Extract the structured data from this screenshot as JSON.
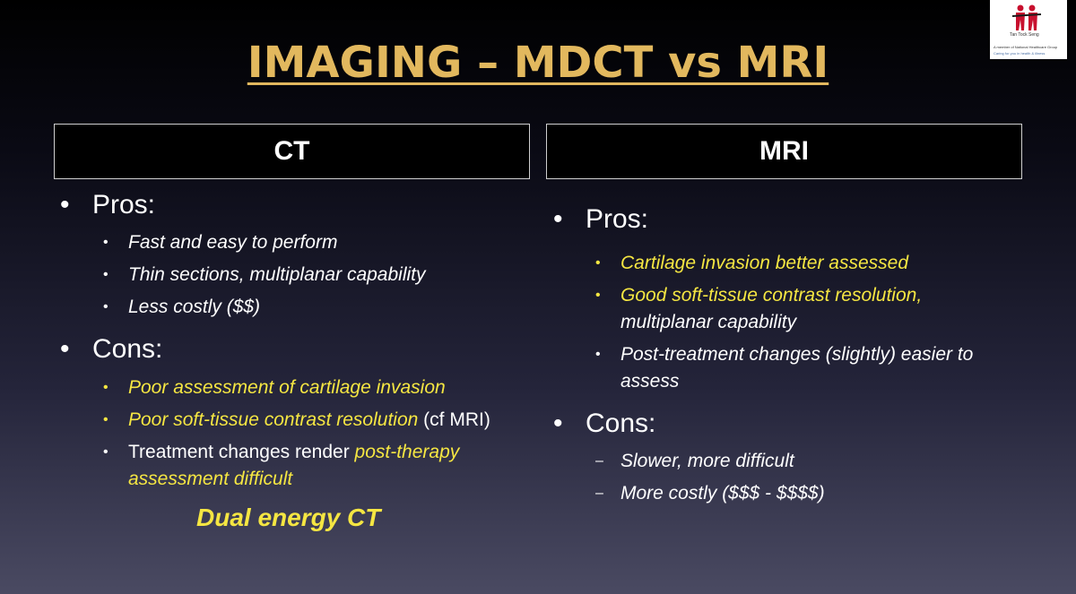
{
  "title": "IMAGING – MDCT vs MRI",
  "logo": {
    "line1": "Tan Tock Seng",
    "line2": "A member of National Healthcare Group",
    "line3": "Caring for you in health & illness"
  },
  "ct": {
    "header": "CT",
    "pros_label": "Pros:",
    "pros": [
      "Fast and easy to perform",
      "Thin sections, multiplanar capability",
      "Less costly ($$)"
    ],
    "cons_label": "Cons:",
    "cons1": "Poor assessment of cartilage invasion",
    "cons2_a": "Poor soft-tissue contrast resolution",
    "cons2_b": " (cf MRI)",
    "cons3_a": "Treatment changes render ",
    "cons3_b": "post-therapy",
    "cons3_c": "assessment difficult",
    "note": "Dual energy CT"
  },
  "mri": {
    "header": "MRI",
    "pros_label": "Pros:",
    "pros1": "Cartilage invasion better assessed",
    "pros2a": "Good soft-tissue contrast resolution,",
    "pros2b": "multiplanar capability",
    "pros3a": "Post-treatment changes (slightly) easier to",
    "pros3b": "assess",
    "cons_label": "Cons:",
    "cons": [
      "Slower, more difficult",
      "More costly ($$$ - $$$$)"
    ]
  },
  "colors": {
    "title": "#e2b85e",
    "highlight": "#f5e642"
  }
}
